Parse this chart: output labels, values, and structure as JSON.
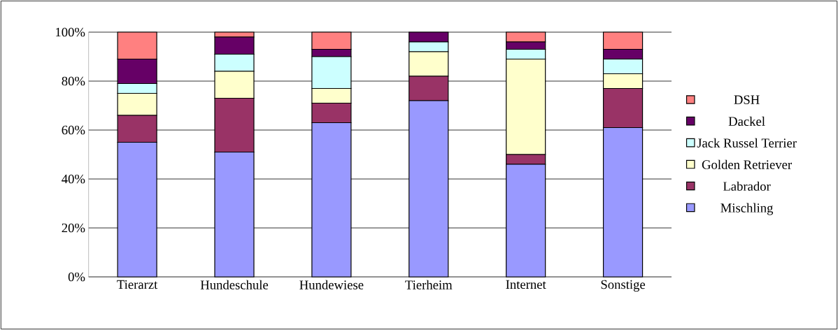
{
  "chart_data": {
    "type": "bar",
    "stacked": true,
    "categories": [
      "Tierarzt",
      "Hundeschule",
      "Hundewiese",
      "Tierheim",
      "Internet",
      "Sonstige"
    ],
    "series": [
      {
        "name": "Mischling",
        "color": "#9999ff",
        "values": [
          55,
          51,
          63,
          72,
          46,
          61
        ]
      },
      {
        "name": "Labrador",
        "color": "#993366",
        "values": [
          11,
          22,
          8,
          10,
          4,
          16
        ]
      },
      {
        "name": "Golden Retriever",
        "color": "#ffffcc",
        "values": [
          9,
          11,
          6,
          10,
          39,
          6
        ]
      },
      {
        "name": "Jack Russel Terrier",
        "color": "#ccffff",
        "values": [
          4,
          7,
          13,
          4,
          4,
          6
        ]
      },
      {
        "name": "Dackel",
        "color": "#660066",
        "values": [
          10,
          7,
          3,
          4,
          3,
          4
        ]
      },
      {
        "name": "DSH",
        "color": "#ff8080",
        "values": [
          11,
          2,
          7,
          0,
          4,
          7
        ]
      }
    ],
    "ylim": [
      0,
      100
    ],
    "yticks": [
      {
        "value": 0,
        "label": "0%"
      },
      {
        "value": 20,
        "label": "20%"
      },
      {
        "value": 40,
        "label": "40%"
      },
      {
        "value": 60,
        "label": "60%"
      },
      {
        "value": 80,
        "label": "80%"
      },
      {
        "value": 100,
        "label": "100%"
      }
    ],
    "grid": "y",
    "legend": "right"
  }
}
